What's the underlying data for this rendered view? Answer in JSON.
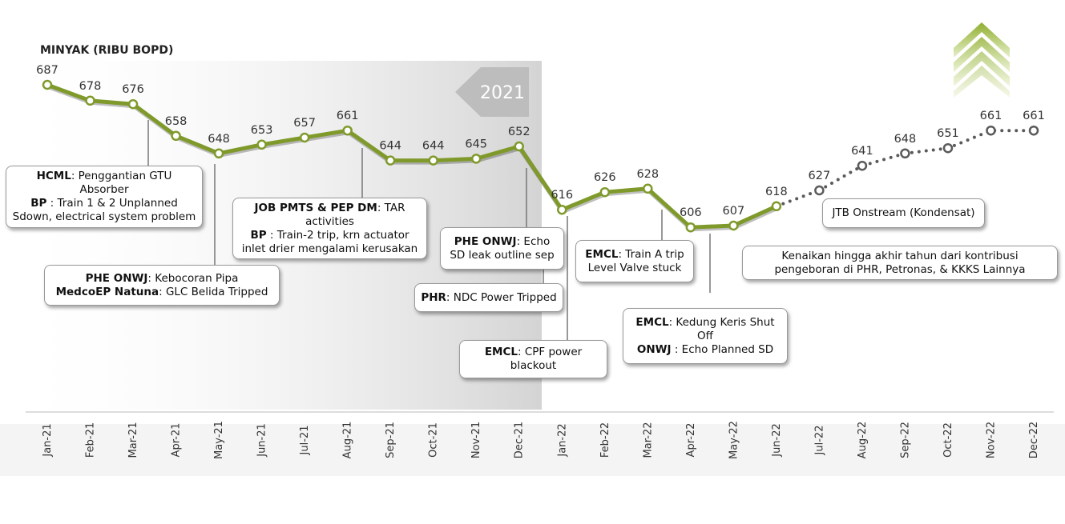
{
  "chart_data": {
    "type": "line",
    "title": "MINYAK (RIBU BOPD)",
    "period_label": "2021",
    "categories": [
      "Jan-21",
      "Feb-21",
      "Mar-21",
      "Apr-21",
      "May-21",
      "Jun-21",
      "Jul-21",
      "Aug-21",
      "Sep-21",
      "Oct-21",
      "Nov-21",
      "Dec-21",
      "Jan-22",
      "Feb-22",
      "Mar-22",
      "Apr-22",
      "May-22",
      "Jun-22",
      "Jul-22",
      "Aug-22",
      "Sep-22",
      "Oct-22",
      "Nov-22",
      "Dec-22"
    ],
    "series": [
      {
        "color": "#7f9a2b",
        "style": "solid",
        "values": [
          687,
          678,
          676,
          658,
          648,
          653,
          657,
          661,
          644,
          644,
          645,
          652,
          616,
          626,
          628,
          606,
          607,
          618,
          null,
          null,
          null,
          null,
          null,
          null
        ]
      },
      {
        "color": "#5a5a5a",
        "style": "dotted",
        "values": [
          null,
          null,
          null,
          null,
          null,
          null,
          null,
          null,
          null,
          null,
          null,
          null,
          null,
          null,
          null,
          null,
          null,
          null,
          627,
          641,
          648,
          651,
          661,
          661
        ]
      }
    ],
    "ylim": [
      580,
      700
    ],
    "annotations": [
      {
        "lines": [
          {
            "bold": "HCML",
            "text": ": Penggantian GTU Absorber"
          },
          {
            "bold": "BP",
            "text": " : Train 1 & 2 Unplanned Sdown, electrical system problem"
          }
        ]
      },
      {
        "lines": [
          {
            "bold": "PHE ONWJ",
            "text": ": Kebocoran Pipa"
          },
          {
            "bold": "MedcoEP Natuna",
            "text": ": GLC Belida Tripped"
          }
        ]
      },
      {
        "lines": [
          {
            "bold": "JOB PMTS & PEP DM",
            "text": ": TAR activities"
          },
          {
            "bold": "BP",
            "text": " : Train-2 trip, krn actuator inlet drier mengalami kerusakan"
          }
        ]
      },
      {
        "lines": [
          {
            "bold": "PHE ONWJ",
            "text": ": Echo SD leak outline sep"
          }
        ]
      },
      {
        "lines": [
          {
            "bold": "PHR",
            "text": ": NDC Power Tripped"
          }
        ]
      },
      {
        "lines": [
          {
            "bold": "EMCL",
            "text": ": CPF power blackout"
          }
        ]
      },
      {
        "lines": [
          {
            "bold": "EMCL",
            "text": ": Train A trip Level Valve stuck"
          }
        ]
      },
      {
        "lines": [
          {
            "bold": "EMCL",
            "text": ": Kedung Keris Shut Off"
          },
          {
            "bold": "ONWJ",
            "text": " : Echo Planned SD"
          }
        ]
      },
      {
        "lines": [
          {
            "text": "JTB Onstream (Kondensat)"
          }
        ]
      },
      {
        "lines": [
          {
            "text": "Kenaikan hingga akhir tahun dari kontribusi pengeboran di PHR, Petronas, & KKKS Lainnya"
          }
        ]
      }
    ]
  }
}
